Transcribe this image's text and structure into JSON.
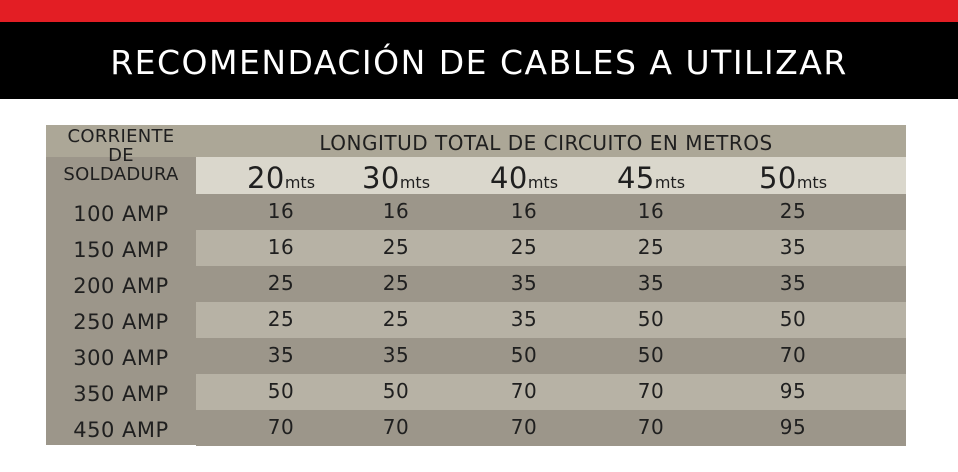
{
  "title": "RECOMENDACIÓN DE CABLES A UTILIZAR",
  "colors": {
    "accent_red": "#e31e24",
    "header_black": "#000000"
  },
  "table": {
    "corner_lines": [
      "CORRIENTE",
      "DE",
      "SOLDADURA"
    ],
    "group_header": "LONGITUD TOTAL DE CIRCUITO EN METROS",
    "lengths": [
      {
        "value": "20",
        "unit": "mts"
      },
      {
        "value": "30",
        "unit": "mts"
      },
      {
        "value": "40",
        "unit": "mts"
      },
      {
        "value": "45",
        "unit": "mts"
      },
      {
        "value": "50",
        "unit": "mts"
      }
    ],
    "rows": [
      {
        "current": "100 AMP",
        "values": [
          "16",
          "16",
          "16",
          "16",
          "25"
        ]
      },
      {
        "current": "150 AMP",
        "values": [
          "16",
          "25",
          "25",
          "25",
          "35"
        ]
      },
      {
        "current": "200 AMP",
        "values": [
          "25",
          "25",
          "35",
          "35",
          "35"
        ]
      },
      {
        "current": "250 AMP",
        "values": [
          "25",
          "25",
          "35",
          "50",
          "50"
        ]
      },
      {
        "current": "300 AMP",
        "values": [
          "35",
          "35",
          "50",
          "50",
          "70"
        ]
      },
      {
        "current": "350 AMP",
        "values": [
          "50",
          "50",
          "70",
          "70",
          "95"
        ]
      },
      {
        "current": "450 AMP",
        "values": [
          "70",
          "70",
          "70",
          "70",
          "95"
        ]
      }
    ]
  }
}
